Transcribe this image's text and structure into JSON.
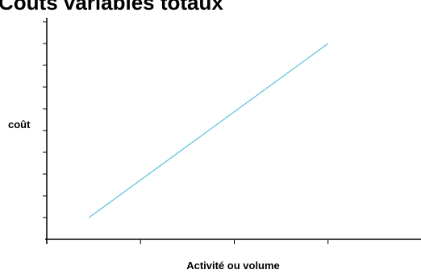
{
  "chart_data": {
    "type": "line",
    "title": "Coûts variables totaux",
    "xlabel": "Activité ou volume",
    "ylabel": "coût",
    "series": [
      {
        "x": [
          0.45,
          3.0
        ],
        "y": [
          1.0,
          9.0
        ]
      }
    ],
    "xlim": [
      0,
      4
    ],
    "ylim": [
      0,
      10
    ],
    "x_ticks": [
      1,
      2,
      3
    ],
    "y_ticks": [
      1,
      2,
      3,
      4,
      5,
      6,
      7,
      8,
      9,
      10
    ],
    "grid": false,
    "legend": "none",
    "colors": {
      "line": "#5bbfd6",
      "axis": "#000000"
    }
  }
}
